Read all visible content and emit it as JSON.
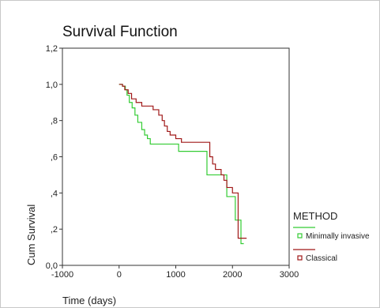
{
  "chart_data": {
    "type": "line",
    "title": "Survival Function",
    "xlabel": "Time (days)",
    "ylabel": "Cum Survival",
    "xlim": [
      -1000,
      3000
    ],
    "ylim": [
      0,
      1.2
    ],
    "xticks": [
      -1000,
      0,
      1000,
      2000,
      3000
    ],
    "xtick_labels": [
      "-1000",
      "0",
      "1000",
      "2000",
      "3000"
    ],
    "yticks": [
      0,
      0.2,
      0.4,
      0.6,
      0.8,
      1.0,
      1.2
    ],
    "ytick_labels": [
      "0,0",
      ",2",
      ",4",
      ",6",
      ",8",
      "1,0",
      "1,2"
    ],
    "grid": false,
    "legend_title": "METHOD",
    "legend_position": "right",
    "series": [
      {
        "name": "Minimally invasive",
        "color": "#33cc33",
        "step_x": [
          0,
          60,
          110,
          140,
          180,
          230,
          280,
          330,
          400,
          450,
          500,
          550,
          1000,
          1050,
          1500,
          1550,
          1800,
          1900,
          2000,
          2050,
          2150,
          2200
        ],
        "step_y": [
          1.0,
          0.99,
          0.97,
          0.94,
          0.9,
          0.87,
          0.83,
          0.79,
          0.75,
          0.72,
          0.7,
          0.67,
          0.67,
          0.63,
          0.63,
          0.5,
          0.5,
          0.38,
          0.38,
          0.25,
          0.12,
          0.12
        ],
        "end_x": 2200
      },
      {
        "name": "Classical",
        "color": "#a01818",
        "step_x": [
          0,
          60,
          100,
          160,
          220,
          300,
          400,
          600,
          700,
          760,
          800,
          850,
          900,
          1000,
          1100,
          1500,
          1600,
          1650,
          1700,
          1800,
          1850,
          1900,
          2000,
          2100,
          2200
        ],
        "step_y": [
          1.0,
          0.99,
          0.97,
          0.95,
          0.92,
          0.9,
          0.88,
          0.86,
          0.83,
          0.8,
          0.77,
          0.74,
          0.72,
          0.7,
          0.68,
          0.68,
          0.6,
          0.56,
          0.53,
          0.5,
          0.47,
          0.43,
          0.4,
          0.15,
          0.15
        ],
        "end_x": 2250
      }
    ]
  }
}
